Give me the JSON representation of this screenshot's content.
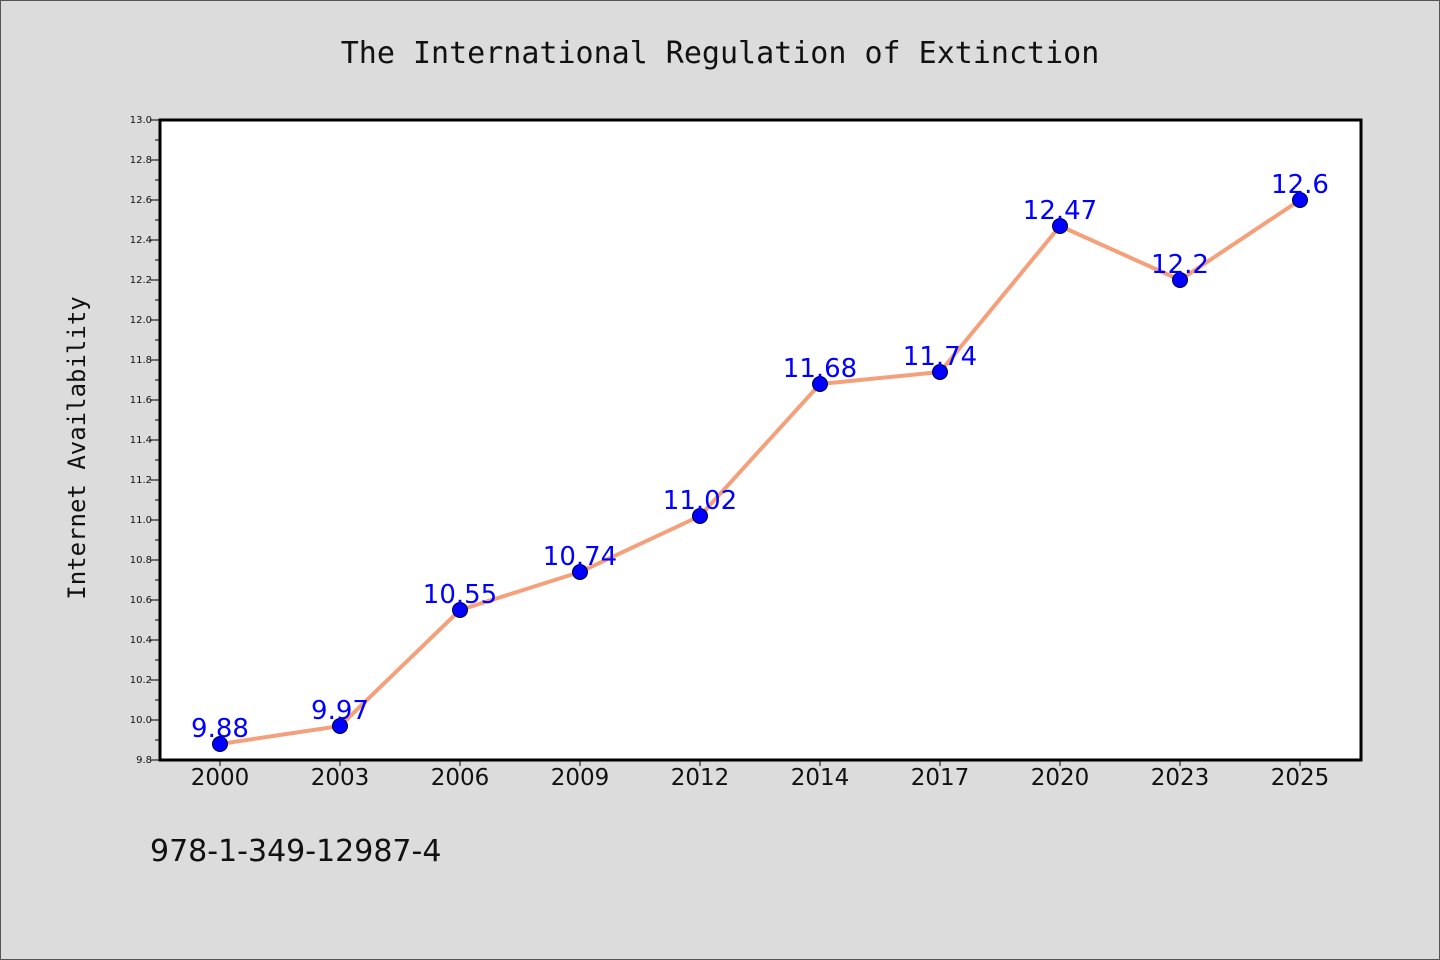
{
  "chart_data": {
    "type": "line",
    "title": "The International Regulation of Extinction",
    "xlabel": "",
    "ylabel": "Internet Availability",
    "categories": [
      "2000",
      "2003",
      "2006",
      "2009",
      "2012",
      "2014",
      "2017",
      "2020",
      "2023",
      "2025"
    ],
    "series": [
      {
        "values": [
          9.88,
          9.97,
          10.55,
          10.74,
          11.02,
          11.68,
          11.74,
          12.47,
          12.2,
          12.6
        ],
        "data_labels": [
          "9.88",
          "9.97",
          "10.55",
          "10.74",
          "11.02",
          "11.68",
          "11.74",
          "12.47",
          "12.2",
          "12.6"
        ]
      }
    ],
    "ylim": [
      9.8,
      13.0
    ],
    "yticks": [
      "9.8",
      "10.0",
      "10.2",
      "10.4",
      "10.6",
      "10.8",
      "11.0",
      "11.2",
      "11.4",
      "11.6",
      "11.8",
      "12.0",
      "12.2",
      "12.4",
      "12.6",
      "12.8",
      "13.0"
    ],
    "grid": false,
    "legend": "none",
    "colors": {
      "line": "#f4a07a",
      "marker": "#0000ff",
      "label": "#0000ff",
      "background": "#dcdcdc",
      "plot_background": "#ffffff"
    }
  },
  "footer": {
    "isbn": "978-1-349-12987-4"
  }
}
